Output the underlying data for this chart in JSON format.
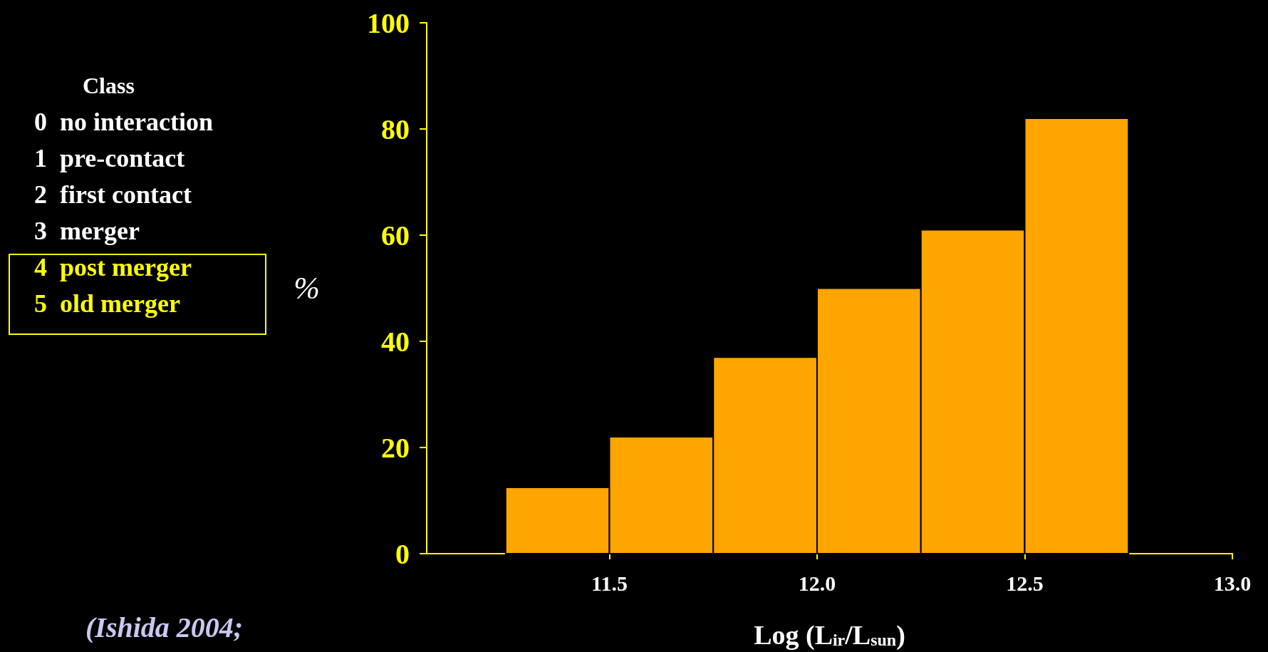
{
  "chart_data": {
    "type": "histogram",
    "bins": [
      11.25,
      11.5,
      11.75,
      12.0,
      12.25,
      12.5,
      12.75
    ],
    "values": [
      12.5,
      22,
      37,
      50,
      61,
      82
    ],
    "color": "#ffa500",
    "xlabel": "Log (L$_{ir}$/L$_{sun}$)",
    "ylabel": "%",
    "xlim": [
      11.06,
      13.0
    ],
    "xticks": [
      11.5,
      {
        "value": 12.0,
        "label": "12.0"
      },
      12.5,
      {
        "value": 13.0,
        "label": "13.0"
      }
    ],
    "ylim": [
      0,
      100
    ],
    "yticks": [
      0,
      20,
      40,
      60,
      80,
      100
    ],
    "grid": false,
    "annotations": [
      "Class",
      "0  no interaction",
      "1  pre-contact",
      "2  first contact",
      "3  merger",
      "4  post merger",
      "5  old merger",
      "(Ishida 2004;"
    ]
  }
}
